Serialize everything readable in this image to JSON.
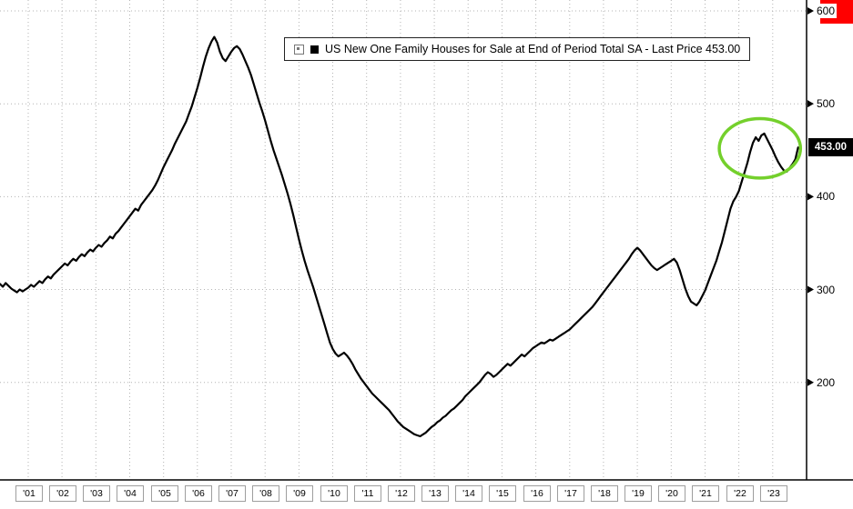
{
  "chart_data": {
    "type": "line",
    "title": "US New One Family Houses for Sale at End of Period Total SA - Last Price 453.00",
    "legend_label": "US New One Family Houses for Sale at End of Period Total SA - Last Price 453.00",
    "last_price": "453.00",
    "last_price_value": 453,
    "xlabel": "",
    "ylabel": "",
    "xlim": [
      2000.167,
      2024.0
    ],
    "ylim": [
      95,
      600
    ],
    "grid": "dotted",
    "legend_position": "top-center",
    "y_ticks": [
      200,
      300,
      400,
      500,
      600
    ],
    "x_tick_years": [
      2001,
      2002,
      2003,
      2004,
      2005,
      2006,
      2007,
      2008,
      2009,
      2010,
      2011,
      2012,
      2013,
      2014,
      2015,
      2016,
      2017,
      2018,
      2019,
      2020,
      2021,
      2022,
      2023
    ],
    "x_tick_labels": [
      "'01",
      "'02",
      "'03",
      "'04",
      "'05",
      "'06",
      "'07",
      "'08",
      "'09",
      "'10",
      "'11",
      "'12",
      "'13",
      "'14",
      "'15",
      "'16",
      "'17",
      "'18",
      "'19",
      "'20",
      "'21",
      "'22",
      "'23"
    ],
    "series": [
      {
        "name": "US New One Family Houses for Sale at End of Period Total SA",
        "frequency": "monthly",
        "start_year": 2000,
        "start_month": 3,
        "values": [
          306,
          303,
          307,
          304,
          301,
          299,
          297,
          300,
          298,
          300,
          302,
          305,
          303,
          306,
          309,
          307,
          311,
          314,
          312,
          316,
          319,
          322,
          325,
          328,
          326,
          330,
          333,
          331,
          335,
          338,
          336,
          340,
          343,
          341,
          345,
          348,
          346,
          350,
          353,
          357,
          355,
          360,
          363,
          367,
          371,
          375,
          379,
          383,
          387,
          385,
          391,
          395,
          399,
          403,
          407,
          412,
          418,
          425,
          432,
          438,
          444,
          450,
          457,
          463,
          469,
          475,
          481,
          489,
          497,
          507,
          517,
          528,
          540,
          551,
          560,
          567,
          572,
          566,
          556,
          549,
          546,
          551,
          556,
          560,
          562,
          559,
          553,
          546,
          539,
          531,
          521,
          511,
          501,
          492,
          482,
          471,
          460,
          450,
          441,
          432,
          423,
          413,
          403,
          392,
          380,
          367,
          354,
          342,
          331,
          321,
          312,
          303,
          293,
          283,
          273,
          263,
          253,
          243,
          236,
          231,
          228,
          230,
          232,
          229,
          225,
          220,
          214,
          209,
          204,
          200,
          196,
          192,
          188,
          185,
          182,
          179,
          176,
          173,
          170,
          166,
          162,
          158,
          155,
          152,
          150,
          148,
          146,
          144,
          143,
          142,
          144,
          146,
          149,
          152,
          154,
          157,
          159,
          162,
          164,
          167,
          170,
          172,
          175,
          178,
          181,
          185,
          188,
          191,
          194,
          197,
          200,
          204,
          208,
          211,
          209,
          206,
          208,
          211,
          214,
          217,
          220,
          218,
          221,
          224,
          227,
          230,
          228,
          231,
          234,
          237,
          239,
          241,
          243,
          242,
          244,
          246,
          245,
          247,
          249,
          251,
          253,
          255,
          257,
          260,
          263,
          266,
          269,
          272,
          275,
          278,
          281,
          285,
          289,
          293,
          297,
          301,
          305,
          309,
          313,
          317,
          321,
          325,
          329,
          333,
          338,
          342,
          345,
          342,
          338,
          334,
          330,
          326,
          323,
          321,
          323,
          325,
          327,
          329,
          331,
          333,
          329,
          321,
          311,
          301,
          293,
          287,
          285,
          283,
          287,
          293,
          299,
          307,
          315,
          323,
          331,
          341,
          351,
          363,
          375,
          387,
          395,
          400,
          406,
          416,
          426,
          436,
          448,
          458,
          464,
          460,
          466,
          468,
          462,
          456,
          450,
          443,
          437,
          432,
          428,
          427,
          431,
          435,
          440,
          453
        ]
      }
    ],
    "annotation": {
      "type": "ellipse",
      "center_year": 2022.62,
      "center_value": 452,
      "rx_years": 1.2,
      "ry_value": 32,
      "color": "#74d02c"
    },
    "colors": {
      "line": "#000000",
      "grid": "#b3b3b3",
      "axis": "#000000",
      "last_price_bg": "#000000",
      "last_price_text": "#ffffff",
      "corner_box": "#ff0000",
      "label_border": "#9e9e9e"
    }
  }
}
